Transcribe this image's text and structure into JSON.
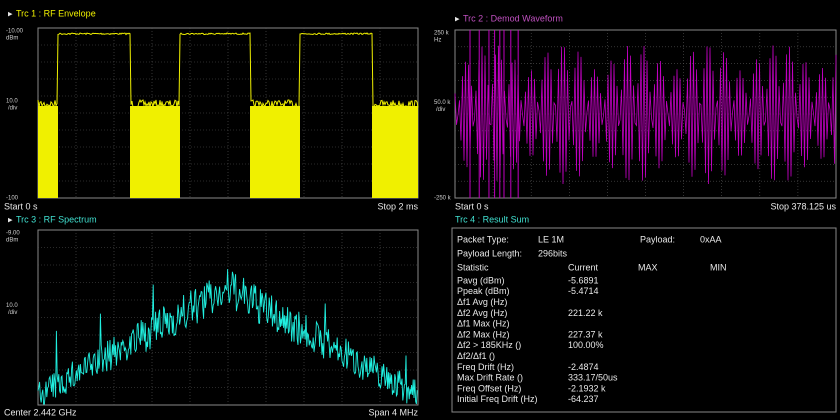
{
  "panels": [
    {
      "title": "Trc 1 :  RF Envelope",
      "y_top": "-10.00",
      "y_top_unit": "dBm",
      "y_mid": "10.0",
      "y_mid_unit": "/div",
      "y_bottom": "-100",
      "x_start": "Start 0 s",
      "x_stop": "Stop 2 ms"
    },
    {
      "title": "Trc 2 :  Demod Waveform",
      "y_top": "250 k",
      "y_top_unit": "Hz",
      "y_mid": "50.0 k",
      "y_mid_unit": "/div",
      "y_bottom": "-250 k",
      "x_start": "Start 0 s",
      "x_stop": "Stop 378.125 us"
    },
    {
      "title": "Trc 3 :  RF Spectrum",
      "y_top": "-9.00",
      "y_top_unit": "dBm",
      "y_mid": "10.0",
      "y_mid_unit": "/div",
      "x_start": "Center 2.442 GHz",
      "x_stop": "Span 4 MHz"
    }
  ],
  "result": {
    "title": "Trc 4 :  Result Sum",
    "info": [
      [
        "Packet Type:",
        "LE 1M",
        "Payload:",
        "0xAA"
      ],
      [
        "Payload Length:",
        "296bits"
      ]
    ],
    "header": [
      "Statistic",
      "Current",
      "MAX",
      "MIN"
    ],
    "rows": [
      [
        "Pavg (dBm)",
        "-5.6891"
      ],
      [
        "Ppeak (dBm)",
        "-5.4714"
      ],
      [
        "Δf1 Avg (Hz)",
        ""
      ],
      [
        "Δf2 Avg (Hz)",
        "221.22 k"
      ],
      [
        "Δf1 Max (Hz)",
        ""
      ],
      [
        "Δf2 Max (Hz)",
        "227.37 k"
      ],
      [
        "Δf2 > 185KHz ()",
        "100.00%"
      ],
      [
        "Δf2/Δf1 ()",
        ""
      ],
      [
        "Freq Drift (Hz)",
        "-2.4874"
      ],
      [
        "Max Drift Rate ()",
        "333.17/50us"
      ],
      [
        "Freq Offset (Hz)",
        "-2.1932 k"
      ],
      [
        "Initial Freq Drift (Hz)",
        "-64.237"
      ]
    ]
  }
}
